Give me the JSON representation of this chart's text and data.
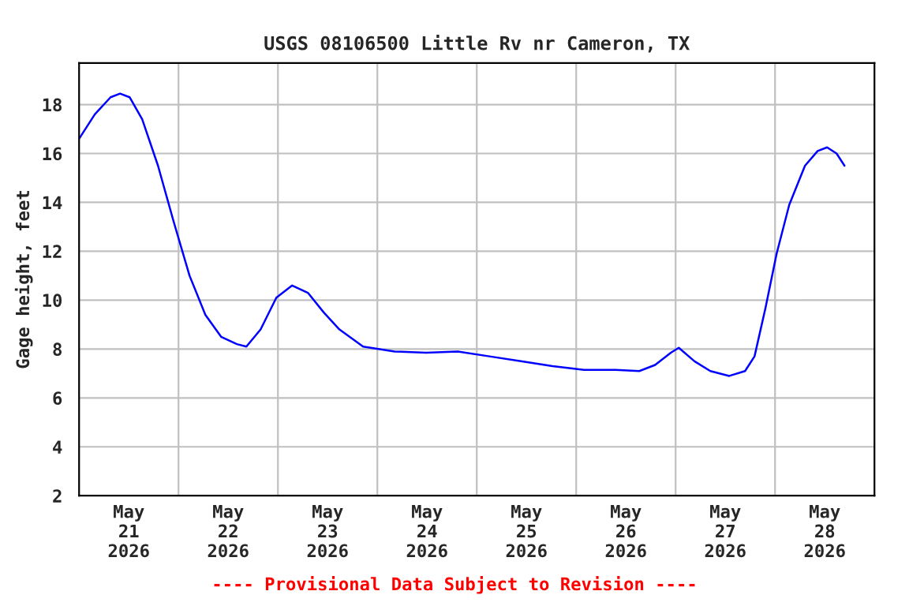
{
  "chart_data": {
    "type": "line",
    "title": "USGS 08106500 Little Rv nr Cameron, TX",
    "ylabel": "Gage height, feet",
    "x": [
      "2026-05-21T00:00",
      "2026-05-21T03:48",
      "2026-05-21T07:36",
      "2026-05-21T09:54",
      "2026-05-21T12:12",
      "2026-05-21T15:14",
      "2026-05-21T19:03",
      "2026-05-21T22:51",
      "2026-05-22T02:40",
      "2026-05-22T06:29",
      "2026-05-22T10:17",
      "2026-05-22T14:06",
      "2026-05-22T16:23",
      "2026-05-22T19:49",
      "2026-05-22T23:37",
      "2026-05-23T03:26",
      "2026-05-23T07:14",
      "2026-05-23T11:03",
      "2026-05-23T14:51",
      "2026-05-23T20:34",
      "2026-05-24T04:11",
      "2026-05-24T11:49",
      "2026-05-24T19:26",
      "2026-05-25T03:03",
      "2026-05-25T10:40",
      "2026-05-25T18:17",
      "2026-05-26T01:54",
      "2026-05-26T09:31",
      "2026-05-26T15:14",
      "2026-05-26T19:03",
      "2026-05-26T22:51",
      "2026-05-27T00:46",
      "2026-05-27T04:34",
      "2026-05-27T08:23",
      "2026-05-27T12:57",
      "2026-05-27T16:46",
      "2026-05-27T19:03",
      "2026-05-27T21:43",
      "2026-05-28T00:23",
      "2026-05-28T03:26",
      "2026-05-28T07:14",
      "2026-05-28T10:17",
      "2026-05-28T12:34",
      "2026-05-28T14:51",
      "2026-05-28T16:46"
    ],
    "series": [
      {
        "color": "#0000ff",
        "values": [
          16.6,
          17.6,
          18.3,
          18.45,
          18.3,
          17.4,
          15.5,
          13.2,
          11.0,
          9.4,
          8.5,
          8.2,
          8.1,
          8.8,
          10.1,
          10.6,
          10.3,
          9.5,
          8.8,
          8.1,
          7.9,
          7.85,
          7.9,
          7.7,
          7.5,
          7.3,
          7.15,
          7.15,
          7.1,
          7.35,
          7.85,
          8.05,
          7.5,
          7.1,
          6.9,
          7.1,
          7.7,
          9.7,
          11.9,
          13.9,
          15.5,
          16.1,
          16.25,
          16.0,
          15.5
        ]
      }
    ],
    "xlim": [
      "2026-05-21T00:00",
      "2026-05-29T00:00"
    ],
    "xticks": [
      {
        "value": "2026-05-21T12:00",
        "label": "May\n21\n2026"
      },
      {
        "value": "2026-05-22T00:00",
        "label": null
      },
      {
        "value": "2026-05-22T12:00",
        "label": "May\n22\n2026"
      },
      {
        "value": "2026-05-23T00:00",
        "label": null
      },
      {
        "value": "2026-05-23T12:00",
        "label": "May\n23\n2026"
      },
      {
        "value": "2026-05-24T00:00",
        "label": null
      },
      {
        "value": "2026-05-24T12:00",
        "label": "May\n24\n2026"
      },
      {
        "value": "2026-05-25T00:00",
        "label": null
      },
      {
        "value": "2026-05-25T12:00",
        "label": "May\n25\n2026"
      },
      {
        "value": "2026-05-26T00:00",
        "label": null
      },
      {
        "value": "2026-05-26T12:00",
        "label": "May\n26\n2026"
      },
      {
        "value": "2026-05-27T00:00",
        "label": null
      },
      {
        "value": "2026-05-27T12:00",
        "label": "May\n27\n2026"
      },
      {
        "value": "2026-05-28T00:00",
        "label": null
      },
      {
        "value": "2026-05-28T12:00",
        "label": "May\n28\n2026"
      }
    ],
    "ylim": [
      2,
      19.7
    ],
    "yticks": [
      2,
      4,
      6,
      8,
      10,
      12,
      14,
      16,
      18
    ],
    "grid": true,
    "marker": "none",
    "line_style": "solid",
    "annotations": [
      "---- Provisional Data Subject to Revision ----"
    ]
  }
}
